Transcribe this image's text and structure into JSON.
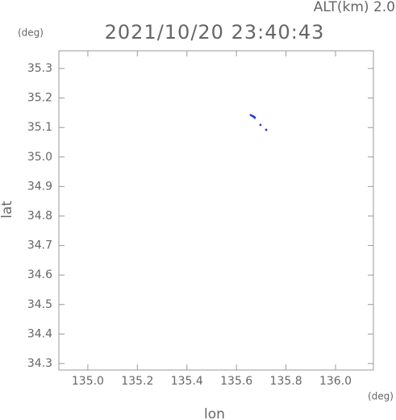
{
  "chart_data": {
    "type": "scatter",
    "title": "2021/10/20 23:40:43",
    "subtitle": "ALT(km) 2.0",
    "y_unit": "(deg)",
    "x_unit": "(deg)",
    "xlabel": "lon",
    "ylabel": "lat",
    "xlim": [
      134.883,
      136.153
    ],
    "ylim": [
      34.278,
      35.36
    ],
    "xticks": [
      {
        "value": 135.0,
        "label": "135.0"
      },
      135.2,
      135.4,
      135.6,
      135.8,
      {
        "value": 136.0,
        "label": "136.0"
      }
    ],
    "yticks": [
      35.3,
      35.2,
      35.1,
      {
        "value": 35.0,
        "label": "35.0"
      },
      34.9,
      34.8,
      34.7,
      34.6,
      34.5,
      34.4,
      34.3
    ],
    "series": [
      {
        "color": "#2f3fd0",
        "x": [
          135.658,
          135.664,
          135.667,
          135.671,
          135.674,
          135.697,
          135.72
        ],
        "y": [
          35.142,
          35.139,
          35.138,
          35.136,
          35.133,
          35.109,
          35.092
        ]
      }
    ]
  }
}
